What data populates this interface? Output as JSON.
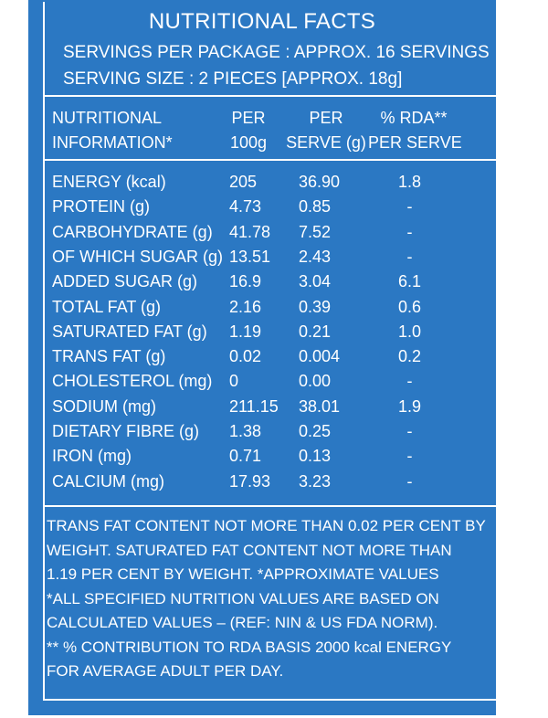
{
  "title": "NUTRITIONAL FACTS",
  "servings_per_package": "SERVINGS PER PACKAGE :  APPROX.  16 SERVINGS",
  "serving_size": "SERVING SIZE : 2 PIECES [APPROX. 18g]",
  "headers": {
    "nutrient_line1": "NUTRITIONAL",
    "nutrient_line2": "INFORMATION*",
    "per100_line1": "PER",
    "per100_line2": "100g",
    "serve_line1": "PER",
    "serve_line2": "SERVE (g)",
    "rda_line1": "% RDA**",
    "rda_line2": "PER SERVE"
  },
  "rows": [
    {
      "name": "ENERGY (kcal)",
      "per100": "205",
      "serve": "36.90",
      "rda": "1.8"
    },
    {
      "name": "PROTEIN (g)",
      "per100": "4.73",
      "serve": "0.85",
      "rda": "-"
    },
    {
      "name": "CARBOHYDRATE (g)",
      "per100": "41.78",
      "serve": "7.52",
      "rda": "-"
    },
    {
      "name": "OF WHICH SUGAR (g)",
      "per100": "13.51",
      "serve": "2.43",
      "rda": "-"
    },
    {
      "name": "ADDED SUGAR (g)",
      "per100": "16.9",
      "serve": "3.04",
      "rda": "6.1"
    },
    {
      "name": "TOTAL FAT (g)",
      "per100": "2.16",
      "serve": "0.39",
      "rda": "0.6"
    },
    {
      "name": "SATURATED FAT (g)",
      "per100": "1.19",
      "serve": "0.21",
      "rda": "1.0"
    },
    {
      "name": "TRANS FAT (g)",
      "per100": "0.02",
      "serve": "0.004",
      "rda": "0.2"
    },
    {
      "name": "CHOLESTEROL (mg)",
      "per100": "0",
      "serve": "0.00",
      "rda": "-"
    },
    {
      "name": "SODIUM (mg)",
      "per100": "211.15",
      "serve": "38.01",
      "rda": "1.9"
    },
    {
      "name": "DIETARY FIBRE (g)",
      "per100": "1.38",
      "serve": "0.25",
      "rda": "-"
    },
    {
      "name": "IRON (mg)",
      "per100": "0.71",
      "serve": "0.13",
      "rda": "-"
    },
    {
      "name": "CALCIUM (mg)",
      "per100": "17.93",
      "serve": "3.23",
      "rda": "-"
    }
  ],
  "notes": [
    "TRANS FAT CONTENT NOT MORE THAN 0.02 PER CENT BY",
    "WEIGHT.  SATURATED FAT CONTENT NOT MORE THAN",
    "1.19 PER CENT BY WEIGHT.  *APPROXIMATE VALUES",
    "*ALL SPECIFIED NUTRITION VALUES ARE BASED ON",
    "CALCULATED VALUES – (REF: NIN & US FDA NORM).",
    "** % CONTRIBUTION TO RDA BASIS 2000 kcal ENERGY",
    "FOR AVERAGE ADULT PER DAY."
  ]
}
